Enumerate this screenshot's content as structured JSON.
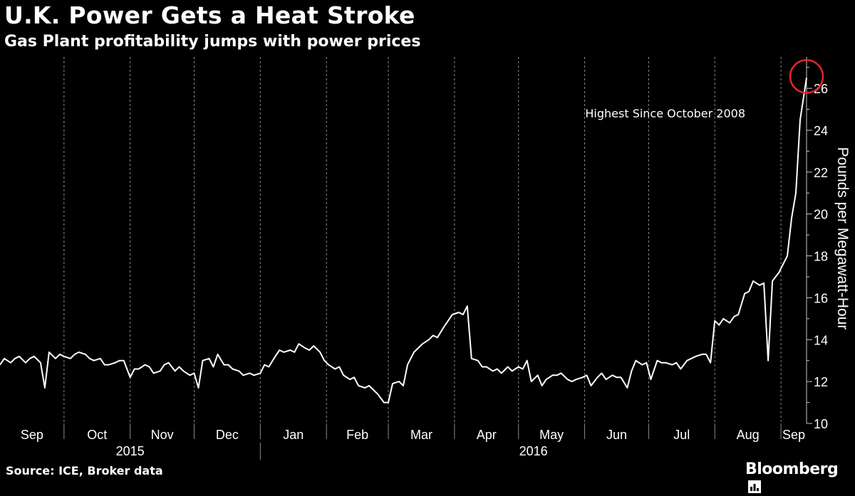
{
  "header": {
    "title": "U.K. Power Gets a Heat Stroke",
    "subtitle": "Gas Plant profitability jumps with power prices"
  },
  "footer": {
    "source": "Source: ICE, Broker data",
    "brand": "Bloomberg"
  },
  "colors": {
    "background": "#000000",
    "line": "#ffffff",
    "grid": "#8a8a8a",
    "highlight": "#e0262b"
  },
  "chart_data": {
    "type": "line",
    "ylabel": "Pounds per Megawatt-Hour",
    "ylim": [
      10,
      27.5
    ],
    "yticks": [
      10,
      12,
      14,
      16,
      18,
      20,
      22,
      24,
      26
    ],
    "y_axis_position": "right",
    "grid": "vertical dashed at month boundaries",
    "x_start": "2015-09-01",
    "x_end": "2016-09-13",
    "months": [
      "Sep",
      "Oct",
      "Nov",
      "Dec",
      "Jan",
      "Feb",
      "Mar",
      "Apr",
      "May",
      "Jun",
      "Jul",
      "Aug",
      "Sep"
    ],
    "years": [
      "2015",
      "2016"
    ],
    "annotation": {
      "text": "Highest Since October 2008",
      "date": "2016-09-13",
      "value": 26.5
    },
    "series": [
      {
        "values": [
          [
            "2015-09-01",
            12.8
          ],
          [
            "2015-09-03",
            13.1
          ],
          [
            "2015-09-06",
            12.9
          ],
          [
            "2015-09-08",
            13.1
          ],
          [
            "2015-09-10",
            13.2
          ],
          [
            "2015-09-13",
            12.9
          ],
          [
            "2015-09-15",
            13.1
          ],
          [
            "2015-09-17",
            13.2
          ],
          [
            "2015-09-20",
            12.9
          ],
          [
            "2015-09-22",
            11.7
          ],
          [
            "2015-09-24",
            13.4
          ],
          [
            "2015-09-27",
            13.1
          ],
          [
            "2015-09-29",
            13.3
          ],
          [
            "2015-10-01",
            13.2
          ],
          [
            "2015-10-04",
            13.1
          ],
          [
            "2015-10-06",
            13.3
          ],
          [
            "2015-10-08",
            13.4
          ],
          [
            "2015-10-11",
            13.3
          ],
          [
            "2015-10-13",
            13.1
          ],
          [
            "2015-10-15",
            13.0
          ],
          [
            "2015-10-18",
            13.1
          ],
          [
            "2015-10-20",
            12.8
          ],
          [
            "2015-10-22",
            12.8
          ],
          [
            "2015-10-25",
            12.9
          ],
          [
            "2015-10-27",
            13.0
          ],
          [
            "2015-10-29",
            13.0
          ],
          [
            "2015-11-01",
            12.2
          ],
          [
            "2015-11-03",
            12.6
          ],
          [
            "2015-11-05",
            12.6
          ],
          [
            "2015-11-08",
            12.8
          ],
          [
            "2015-11-10",
            12.7
          ],
          [
            "2015-11-12",
            12.4
          ],
          [
            "2015-11-15",
            12.5
          ],
          [
            "2015-11-17",
            12.8
          ],
          [
            "2015-11-19",
            12.9
          ],
          [
            "2015-11-22",
            12.5
          ],
          [
            "2015-11-24",
            12.7
          ],
          [
            "2015-11-26",
            12.5
          ],
          [
            "2015-11-29",
            12.3
          ],
          [
            "2015-12-01",
            12.4
          ],
          [
            "2015-12-03",
            11.7
          ],
          [
            "2015-12-05",
            13.0
          ],
          [
            "2015-12-08",
            13.1
          ],
          [
            "2015-12-10",
            12.7
          ],
          [
            "2015-12-12",
            13.3
          ],
          [
            "2015-12-15",
            12.8
          ],
          [
            "2015-12-17",
            12.8
          ],
          [
            "2015-12-19",
            12.6
          ],
          [
            "2015-12-22",
            12.5
          ],
          [
            "2015-12-24",
            12.3
          ],
          [
            "2015-12-27",
            12.4
          ],
          [
            "2015-12-29",
            12.3
          ],
          [
            "2016-01-01",
            12.4
          ],
          [
            "2016-01-03",
            12.8
          ],
          [
            "2016-01-05",
            12.7
          ],
          [
            "2016-01-08",
            13.2
          ],
          [
            "2016-01-10",
            13.5
          ],
          [
            "2016-01-12",
            13.4
          ],
          [
            "2016-01-15",
            13.5
          ],
          [
            "2016-01-17",
            13.4
          ],
          [
            "2016-01-19",
            13.8
          ],
          [
            "2016-01-22",
            13.6
          ],
          [
            "2016-01-24",
            13.5
          ],
          [
            "2016-01-26",
            13.7
          ],
          [
            "2016-01-29",
            13.4
          ],
          [
            "2016-01-31",
            13.0
          ],
          [
            "2016-02-02",
            12.8
          ],
          [
            "2016-02-05",
            12.6
          ],
          [
            "2016-02-07",
            12.7
          ],
          [
            "2016-02-09",
            12.3
          ],
          [
            "2016-02-12",
            12.1
          ],
          [
            "2016-02-14",
            12.2
          ],
          [
            "2016-02-16",
            11.8
          ],
          [
            "2016-02-19",
            11.7
          ],
          [
            "2016-02-21",
            11.8
          ],
          [
            "2016-02-23",
            11.6
          ],
          [
            "2016-02-25",
            11.4
          ],
          [
            "2016-02-28",
            11.0
          ],
          [
            "2016-03-01",
            11.0
          ],
          [
            "2016-03-03",
            11.9
          ],
          [
            "2016-03-06",
            12.0
          ],
          [
            "2016-03-08",
            11.8
          ],
          [
            "2016-03-10",
            12.8
          ],
          [
            "2016-03-13",
            13.4
          ],
          [
            "2016-03-15",
            13.6
          ],
          [
            "2016-03-17",
            13.8
          ],
          [
            "2016-03-20",
            14.0
          ],
          [
            "2016-03-22",
            14.2
          ],
          [
            "2016-03-24",
            14.1
          ],
          [
            "2016-03-27",
            14.6
          ],
          [
            "2016-03-29",
            14.9
          ],
          [
            "2016-03-31",
            15.2
          ],
          [
            "2016-04-03",
            15.3
          ],
          [
            "2016-04-05",
            15.2
          ],
          [
            "2016-04-07",
            15.6
          ],
          [
            "2016-04-09",
            13.1
          ],
          [
            "2016-04-12",
            13.0
          ],
          [
            "2016-04-14",
            12.7
          ],
          [
            "2016-04-16",
            12.7
          ],
          [
            "2016-04-19",
            12.5
          ],
          [
            "2016-04-21",
            12.6
          ],
          [
            "2016-04-23",
            12.4
          ],
          [
            "2016-04-26",
            12.7
          ],
          [
            "2016-04-28",
            12.5
          ],
          [
            "2016-05-01",
            12.7
          ],
          [
            "2016-05-03",
            12.6
          ],
          [
            "2016-05-05",
            13.0
          ],
          [
            "2016-05-07",
            12.0
          ],
          [
            "2016-05-10",
            12.3
          ],
          [
            "2016-05-12",
            11.8
          ],
          [
            "2016-05-14",
            12.1
          ],
          [
            "2016-05-17",
            12.3
          ],
          [
            "2016-05-19",
            12.3
          ],
          [
            "2016-05-21",
            12.4
          ],
          [
            "2016-05-24",
            12.1
          ],
          [
            "2016-05-26",
            12.0
          ],
          [
            "2016-05-28",
            12.1
          ],
          [
            "2016-05-31",
            12.2
          ],
          [
            "2016-06-02",
            12.3
          ],
          [
            "2016-06-04",
            11.8
          ],
          [
            "2016-06-07",
            12.2
          ],
          [
            "2016-06-09",
            12.4
          ],
          [
            "2016-06-11",
            12.1
          ],
          [
            "2016-06-14",
            12.3
          ],
          [
            "2016-06-16",
            12.2
          ],
          [
            "2016-06-18",
            12.2
          ],
          [
            "2016-06-21",
            11.7
          ],
          [
            "2016-06-23",
            12.5
          ],
          [
            "2016-06-25",
            13.0
          ],
          [
            "2016-06-28",
            12.8
          ],
          [
            "2016-06-30",
            12.9
          ],
          [
            "2016-07-02",
            12.1
          ],
          [
            "2016-07-05",
            13.0
          ],
          [
            "2016-07-07",
            12.9
          ],
          [
            "2016-07-09",
            12.9
          ],
          [
            "2016-07-12",
            12.8
          ],
          [
            "2016-07-14",
            12.9
          ],
          [
            "2016-07-16",
            12.6
          ],
          [
            "2016-07-19",
            13.0
          ],
          [
            "2016-07-21",
            13.1
          ],
          [
            "2016-07-23",
            13.2
          ],
          [
            "2016-07-26",
            13.3
          ],
          [
            "2016-07-28",
            13.3
          ],
          [
            "2016-07-30",
            12.9
          ],
          [
            "2016-08-01",
            14.9
          ],
          [
            "2016-08-03",
            14.7
          ],
          [
            "2016-08-05",
            15.0
          ],
          [
            "2016-08-08",
            14.8
          ],
          [
            "2016-08-10",
            15.1
          ],
          [
            "2016-08-12",
            15.2
          ],
          [
            "2016-08-15",
            16.2
          ],
          [
            "2016-08-17",
            16.3
          ],
          [
            "2016-08-19",
            16.8
          ],
          [
            "2016-08-22",
            16.6
          ],
          [
            "2016-08-24",
            16.7
          ],
          [
            "2016-08-26",
            13.0
          ],
          [
            "2016-08-28",
            16.8
          ],
          [
            "2016-08-31",
            17.2
          ],
          [
            "2016-09-02",
            17.6
          ],
          [
            "2016-09-04",
            18.0
          ],
          [
            "2016-09-06",
            19.8
          ],
          [
            "2016-09-08",
            21.0
          ],
          [
            "2016-09-10",
            24.5
          ],
          [
            "2016-09-13",
            26.5
          ]
        ]
      }
    ]
  }
}
